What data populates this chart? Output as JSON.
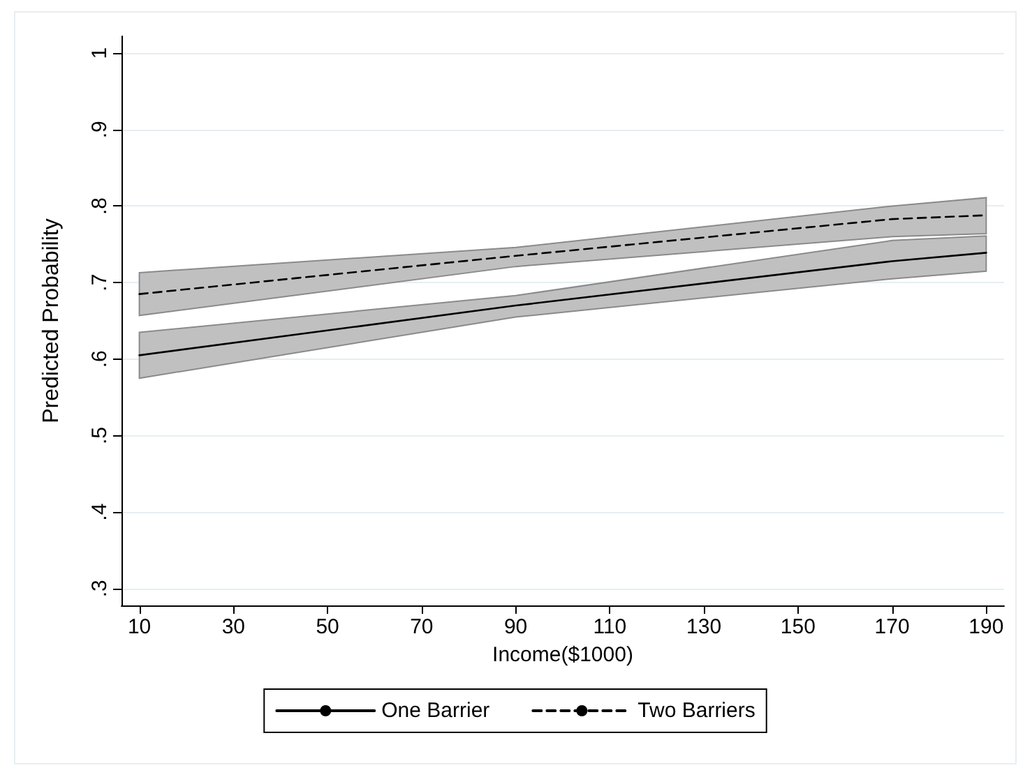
{
  "chart_data": {
    "type": "line",
    "xlabel": "Income($1000)",
    "ylabel": "Predicted Probability",
    "xlim": [
      6.2,
      193.8
    ],
    "xticks": [
      10,
      30,
      50,
      70,
      90,
      110,
      130,
      150,
      170,
      190
    ],
    "ylim": [
      0.278,
      1.022
    ],
    "yticks": [
      {
        "value": 0.3,
        "label": ".3"
      },
      {
        "value": 0.4,
        "label": ".4"
      },
      {
        "value": 0.5,
        "label": ".5"
      },
      {
        "value": 0.6,
        "label": ".6"
      },
      {
        "value": 0.7,
        "label": ".7"
      },
      {
        "value": 0.8,
        "label": ".8"
      },
      {
        "value": 0.9,
        "label": ".9"
      },
      {
        "value": 1,
        "label": "1"
      }
    ],
    "grid": "y",
    "legend": "bottom",
    "marker": "none",
    "series": [
      {
        "name": "One Barrier",
        "color": "#000000",
        "line_style": "solid",
        "x": [
          10,
          90,
          170,
          190
        ],
        "values": [
          0.605,
          0.67,
          0.728,
          0.739
        ],
        "lower": [
          0.575,
          0.655,
          0.705,
          0.715
        ],
        "upper": [
          0.635,
          0.683,
          0.755,
          0.761
        ]
      },
      {
        "name": "Two Barriers",
        "color": "#000000",
        "line_style": "dashed",
        "x": [
          10,
          90,
          170,
          190
        ],
        "values": [
          0.685,
          0.735,
          0.783,
          0.788
        ],
        "lower": [
          0.657,
          0.721,
          0.76,
          0.764
        ],
        "upper": [
          0.713,
          0.746,
          0.8,
          0.811
        ]
      }
    ]
  }
}
